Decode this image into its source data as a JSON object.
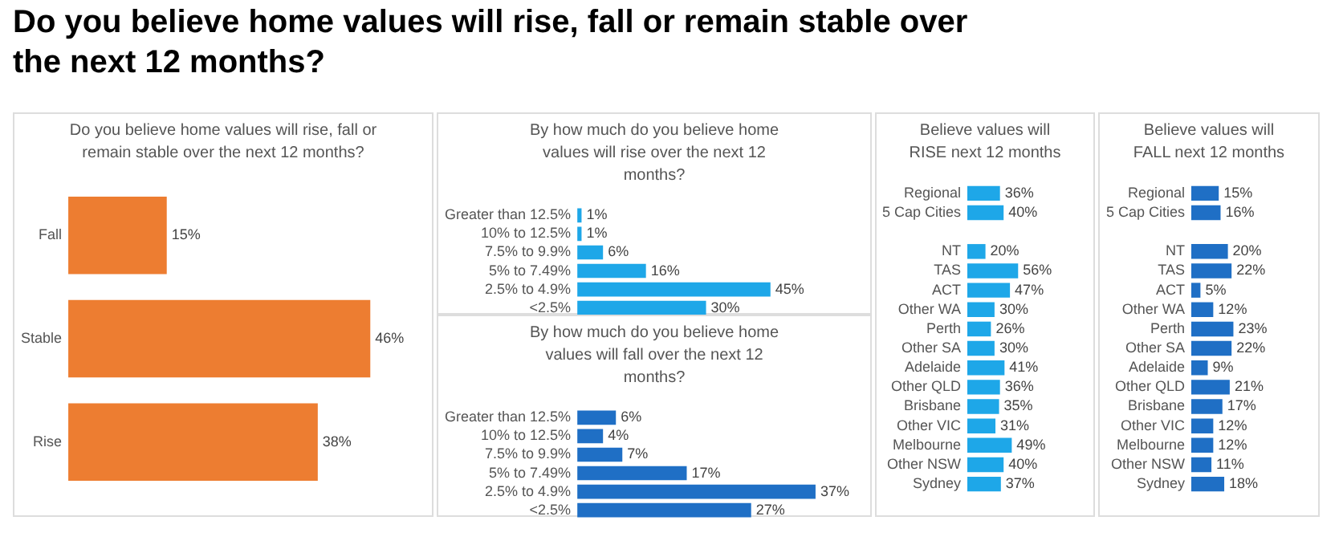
{
  "chart_data": [
    {
      "type": "bar",
      "title": "Do you believe home values will rise, fall or remain stable over the next 12 months?",
      "subtitle": "Do you believe home values will rise, fall or remain stable over the next 12 months?",
      "orientation": "horizontal",
      "categories": [
        "Fall",
        "Stable",
        "Rise"
      ],
      "values": [
        15,
        46,
        38
      ],
      "value_labels": [
        "15%",
        "46%",
        "38%"
      ],
      "color": "#ed7d31",
      "tick_labels": "y",
      "grid": false,
      "legend": false
    },
    {
      "type": "bar",
      "title": "By how much do you believe home values will rise over the next 12 months?",
      "orientation": "horizontal",
      "categories": [
        "Greater than 12.5%",
        "10% to 12.5%",
        "7.5% to 9.9%",
        "5% to 7.49%",
        "2.5% to 4.9%",
        "<2.5%"
      ],
      "values": [
        1,
        1,
        6,
        16,
        45,
        30
      ],
      "value_labels": [
        "1%",
        "1%",
        "6%",
        "16%",
        "45%",
        "30%"
      ],
      "color": "#1ea7e8",
      "tick_labels": "y",
      "grid": false,
      "legend": false
    },
    {
      "type": "bar",
      "title": "By how much do you believe home values will fall over the next 12 months?",
      "orientation": "horizontal",
      "categories": [
        "Greater than 12.5%",
        "10% to 12.5%",
        "7.5% to 9.9%",
        "5% to 7.49%",
        "2.5% to 4.9%",
        "<2.5%"
      ],
      "values": [
        6,
        4,
        7,
        17,
        37,
        27
      ],
      "value_labels": [
        "6%",
        "4%",
        "7%",
        "17%",
        "37%",
        "27%"
      ],
      "color": "#1f6fc5",
      "tick_labels": "y",
      "grid": false,
      "legend": false
    },
    {
      "type": "bar",
      "title": "Believe values will RISE next 12 months",
      "orientation": "horizontal",
      "categories": [
        "Regional",
        "5 Cap Cities",
        null,
        "NT",
        "TAS",
        "ACT",
        "Other WA",
        "Perth",
        "Other SA",
        "Adelaide",
        "Other QLD",
        "Brisbane",
        "Other VIC",
        "Melbourne",
        "Other NSW",
        "Sydney"
      ],
      "values": [
        36,
        40,
        null,
        20,
        56,
        47,
        30,
        26,
        30,
        41,
        36,
        35,
        31,
        49,
        40,
        37
      ],
      "value_labels": [
        "36%",
        "40%",
        null,
        "20%",
        "56%",
        "47%",
        "30%",
        "26%",
        "30%",
        "41%",
        "36%",
        "35%",
        "31%",
        "49%",
        "40%",
        "37%"
      ],
      "color": "#1ea7e8",
      "tick_labels": "y",
      "grid": false,
      "legend": false
    },
    {
      "type": "bar",
      "title": "Believe values will FALL next 12 months",
      "orientation": "horizontal",
      "categories": [
        "Regional",
        "5 Cap Cities",
        null,
        "NT",
        "TAS",
        "ACT",
        "Other WA",
        "Perth",
        "Other SA",
        "Adelaide",
        "Other QLD",
        "Brisbane",
        "Other VIC",
        "Melbourne",
        "Other NSW",
        "Sydney"
      ],
      "values": [
        15,
        16,
        null,
        20,
        22,
        5,
        12,
        23,
        22,
        9,
        21,
        17,
        12,
        12,
        11,
        18
      ],
      "value_labels": [
        "15%",
        "16%",
        null,
        "20%",
        "22%",
        "5%",
        "12%",
        "23%",
        "22%",
        "9%",
        "21%",
        "17%",
        "12%",
        "12%",
        "11%",
        "18%"
      ],
      "color": "#1f6fc5",
      "tick_labels": "y",
      "grid": false,
      "legend": false
    }
  ]
}
